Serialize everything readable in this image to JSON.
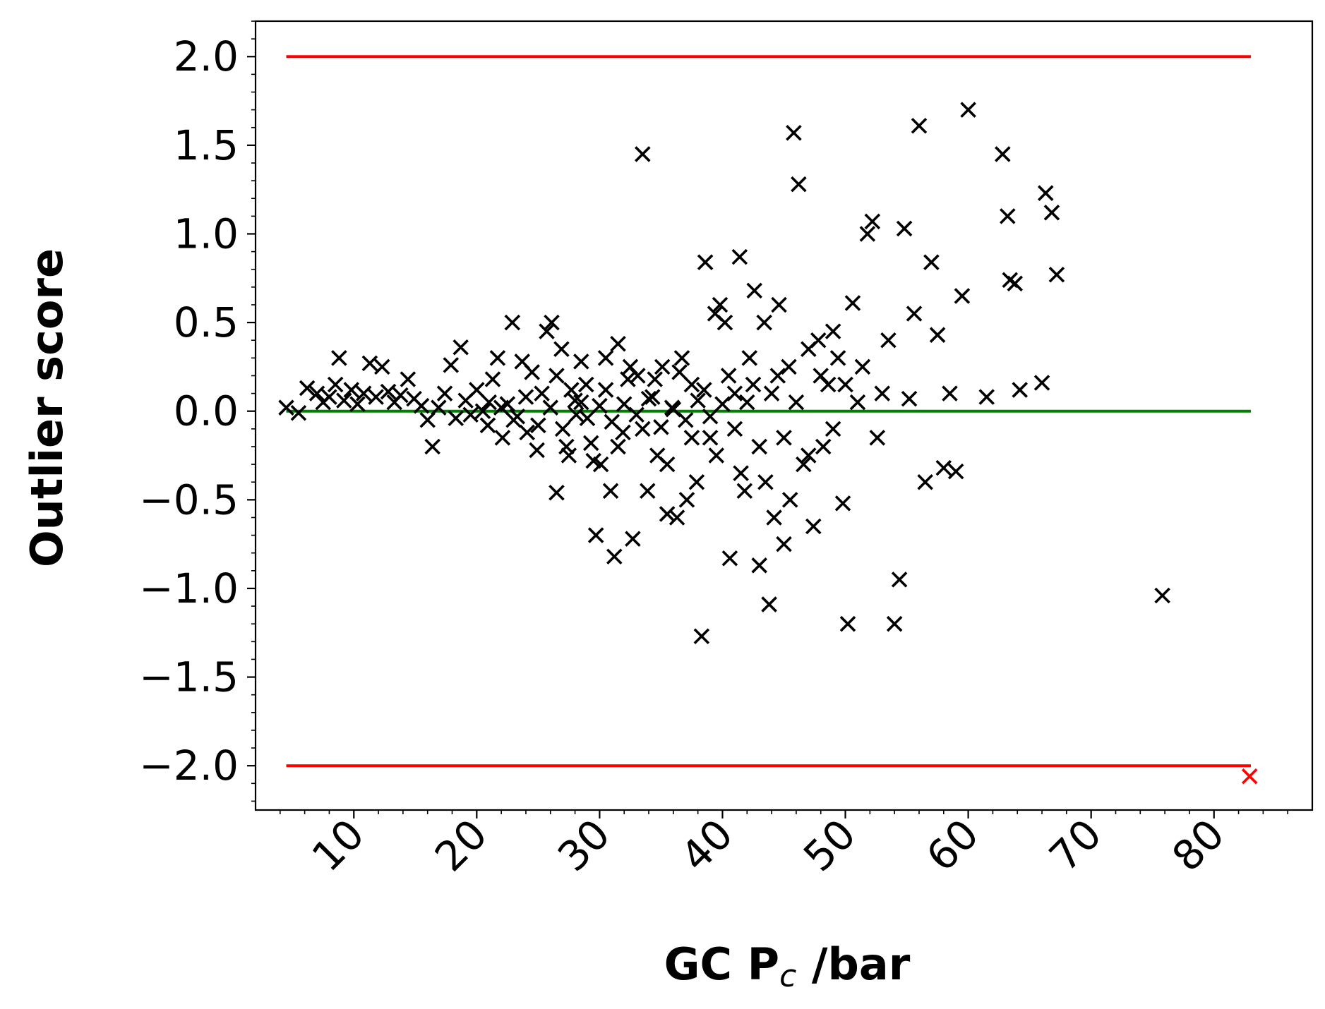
{
  "chart_data": {
    "type": "scatter",
    "title": "",
    "xlabel": "GC P",
    "xlabel_sub": "c",
    "xlabel_unit": " /bar",
    "ylabel": "Outlier score",
    "xlim": [
      2,
      88
    ],
    "ylim": [
      -2.25,
      2.2
    ],
    "x_ticks": [
      10,
      20,
      30,
      40,
      50,
      60,
      70,
      80
    ],
    "x_tick_labels": [
      "10",
      "20",
      "30",
      "40",
      "50",
      "60",
      "70",
      "80"
    ],
    "y_ticks": [
      2.0,
      1.5,
      1.0,
      0.5,
      0.0,
      -0.5,
      -1.0,
      -1.5,
      -2.0
    ],
    "y_tick_labels": [
      "2.0",
      "1.5",
      "1.0",
      "0.5",
      "0.0",
      "−0.5",
      "−1.0",
      "−1.5",
      "−2.0"
    ],
    "grid": false,
    "marker": "x",
    "reference_lines": [
      {
        "y": 2.0,
        "x_range": [
          4.5,
          83
        ],
        "color": "#ff0000"
      },
      {
        "y": -2.0,
        "x_range": [
          4.5,
          83
        ],
        "color": "#ff0000"
      },
      {
        "y": 0.0,
        "x_range": [
          4.5,
          83
        ],
        "color": "#008000"
      }
    ],
    "series": [
      {
        "color": "#000000",
        "points": [
          [
            4.5,
            0.02
          ],
          [
            5.5,
            -0.01
          ],
          [
            6.2,
            0.13
          ],
          [
            7.0,
            0.1
          ],
          [
            7.5,
            0.05
          ],
          [
            8.0,
            0.08
          ],
          [
            8.5,
            0.15
          ],
          [
            8.8,
            0.3
          ],
          [
            9.2,
            0.06
          ],
          [
            9.8,
            0.12
          ],
          [
            10.3,
            0.04
          ],
          [
            10.8,
            0.1
          ],
          [
            11.3,
            0.27
          ],
          [
            11.8,
            0.08
          ],
          [
            12.3,
            0.25
          ],
          [
            12.8,
            0.11
          ],
          [
            13.3,
            0.05
          ],
          [
            13.8,
            0.09
          ],
          [
            14.4,
            0.18
          ],
          [
            14.9,
            0.07
          ],
          [
            15.5,
            0.03
          ],
          [
            16.0,
            -0.05
          ],
          [
            16.4,
            -0.2
          ],
          [
            16.9,
            0.02
          ],
          [
            17.4,
            0.1
          ],
          [
            17.9,
            0.26
          ],
          [
            18.3,
            -0.04
          ],
          [
            18.7,
            0.36
          ],
          [
            19.1,
            0.06
          ],
          [
            19.5,
            -0.02
          ],
          [
            20.0,
            0.12
          ],
          [
            20.5,
            0.0
          ],
          [
            20.9,
            -0.08
          ],
          [
            21.3,
            0.18
          ],
          [
            21.7,
            0.3
          ],
          [
            22.1,
            -0.15
          ],
          [
            22.5,
            0.04
          ],
          [
            22.9,
            0.5
          ],
          [
            23.3,
            -0.03
          ],
          [
            23.7,
            0.28
          ],
          [
            24.1,
            -0.12
          ],
          [
            24.5,
            0.22
          ],
          [
            24.9,
            -0.22
          ],
          [
            25.3,
            0.1
          ],
          [
            25.7,
            0.45
          ],
          [
            26.1,
            0.5
          ],
          [
            26.5,
            -0.46
          ],
          [
            26.9,
            0.35
          ],
          [
            27.3,
            -0.2
          ],
          [
            27.7,
            0.12
          ],
          [
            28.1,
            -0.02
          ],
          [
            28.5,
            0.05
          ],
          [
            28.9,
            0.15
          ],
          [
            29.3,
            -0.18
          ],
          [
            29.7,
            -0.7
          ],
          [
            30.1,
            -0.3
          ],
          [
            30.5,
            0.3
          ],
          [
            30.9,
            -0.45
          ],
          [
            31.2,
            -0.82
          ],
          [
            31.5,
            0.38
          ],
          [
            31.9,
            -0.12
          ],
          [
            32.3,
            0.18
          ],
          [
            32.7,
            -0.72
          ],
          [
            33.1,
            0.2
          ],
          [
            33.5,
            1.45
          ],
          [
            33.9,
            -0.45
          ],
          [
            34.3,
            0.08
          ],
          [
            34.7,
            -0.25
          ],
          [
            35.1,
            0.25
          ],
          [
            35.5,
            -0.58
          ],
          [
            35.9,
            0.02
          ],
          [
            36.3,
            -0.6
          ],
          [
            36.7,
            0.3
          ],
          [
            37.1,
            -0.5
          ],
          [
            37.5,
            0.15
          ],
          [
            37.9,
            -0.4
          ],
          [
            38.3,
            -1.27
          ],
          [
            38.6,
            0.84
          ],
          [
            39.0,
            -0.15
          ],
          [
            39.4,
            0.55
          ],
          [
            39.8,
            0.6
          ],
          [
            40.2,
            0.5
          ],
          [
            40.6,
            -0.83
          ],
          [
            41.0,
            0.1
          ],
          [
            41.4,
            0.87
          ],
          [
            41.8,
            -0.45
          ],
          [
            42.2,
            0.3
          ],
          [
            42.6,
            0.68
          ],
          [
            43.0,
            -0.87
          ],
          [
            43.4,
            0.5
          ],
          [
            43.8,
            -1.09
          ],
          [
            44.2,
            -0.6
          ],
          [
            44.6,
            0.6
          ],
          [
            45.0,
            -0.75
          ],
          [
            45.4,
            0.25
          ],
          [
            45.8,
            1.57
          ],
          [
            46.2,
            1.28
          ],
          [
            46.6,
            -0.3
          ],
          [
            47.0,
            0.35
          ],
          [
            47.4,
            -0.65
          ],
          [
            47.8,
            0.4
          ],
          [
            48.2,
            -0.2
          ],
          [
            48.6,
            0.15
          ],
          [
            49.0,
            0.45
          ],
          [
            49.4,
            0.3
          ],
          [
            49.8,
            -0.52
          ],
          [
            50.2,
            -1.2
          ],
          [
            50.6,
            0.61
          ],
          [
            51.0,
            0.05
          ],
          [
            51.4,
            0.25
          ],
          [
            51.8,
            1.0
          ],
          [
            52.2,
            1.07
          ],
          [
            52.6,
            -0.15
          ],
          [
            53.0,
            0.1
          ],
          [
            53.5,
            0.4
          ],
          [
            54.0,
            -1.2
          ],
          [
            54.4,
            -0.95
          ],
          [
            54.8,
            1.03
          ],
          [
            55.2,
            0.07
          ],
          [
            55.6,
            0.55
          ],
          [
            56.0,
            1.61
          ],
          [
            56.5,
            -0.4
          ],
          [
            57.0,
            0.84
          ],
          [
            57.5,
            0.43
          ],
          [
            58.0,
            -0.32
          ],
          [
            58.5,
            0.1
          ],
          [
            59.0,
            -0.34
          ],
          [
            59.5,
            0.65
          ],
          [
            60.0,
            1.7
          ],
          [
            61.5,
            0.08
          ],
          [
            62.8,
            1.45
          ],
          [
            63.2,
            1.1
          ],
          [
            63.4,
            0.74
          ],
          [
            63.8,
            0.72
          ],
          [
            64.2,
            0.12
          ],
          [
            66.0,
            0.16
          ],
          [
            66.3,
            1.23
          ],
          [
            66.8,
            1.12
          ],
          [
            67.2,
            0.77
          ],
          [
            75.8,
            -1.04
          ],
          [
            21.0,
            0.05
          ],
          [
            22.0,
            0.02
          ],
          [
            23.0,
            -0.05
          ],
          [
            24.0,
            0.08
          ],
          [
            25.0,
            -0.08
          ],
          [
            26.0,
            0.02
          ],
          [
            27.0,
            -0.1
          ],
          [
            28.0,
            0.06
          ],
          [
            29.0,
            -0.04
          ],
          [
            30.0,
            0.03
          ],
          [
            31.0,
            -0.06
          ],
          [
            32.0,
            0.04
          ],
          [
            33.0,
            -0.02
          ],
          [
            34.0,
            0.07
          ],
          [
            35.0,
            -0.09
          ],
          [
            36.0,
            0.01
          ],
          [
            37.0,
            -0.05
          ],
          [
            38.0,
            0.06
          ],
          [
            39.0,
            -0.03
          ],
          [
            40.0,
            0.04
          ],
          [
            41.0,
            -0.1
          ],
          [
            42.0,
            0.05
          ],
          [
            43.0,
            -0.2
          ],
          [
            44.0,
            0.1
          ],
          [
            45.0,
            -0.15
          ],
          [
            46.0,
            0.05
          ],
          [
            47.0,
            -0.25
          ],
          [
            48.0,
            0.2
          ],
          [
            49.0,
            -0.1
          ],
          [
            50.0,
            0.15
          ],
          [
            26.5,
            0.2
          ],
          [
            27.5,
            -0.25
          ],
          [
            28.5,
            0.28
          ],
          [
            29.5,
            -0.28
          ],
          [
            30.5,
            0.12
          ],
          [
            31.5,
            -0.2
          ],
          [
            32.5,
            0.25
          ],
          [
            33.5,
            -0.1
          ],
          [
            34.5,
            0.18
          ],
          [
            35.5,
            -0.3
          ],
          [
            36.5,
            0.22
          ],
          [
            37.5,
            -0.15
          ],
          [
            38.5,
            0.12
          ],
          [
            39.5,
            -0.25
          ],
          [
            40.5,
            0.2
          ],
          [
            41.5,
            -0.35
          ],
          [
            42.5,
            0.15
          ],
          [
            43.5,
            -0.4
          ],
          [
            44.5,
            0.2
          ],
          [
            45.5,
            -0.5
          ]
        ]
      },
      {
        "color": "#ff0000",
        "points": [
          [
            82.9,
            -2.06
          ]
        ]
      }
    ]
  }
}
